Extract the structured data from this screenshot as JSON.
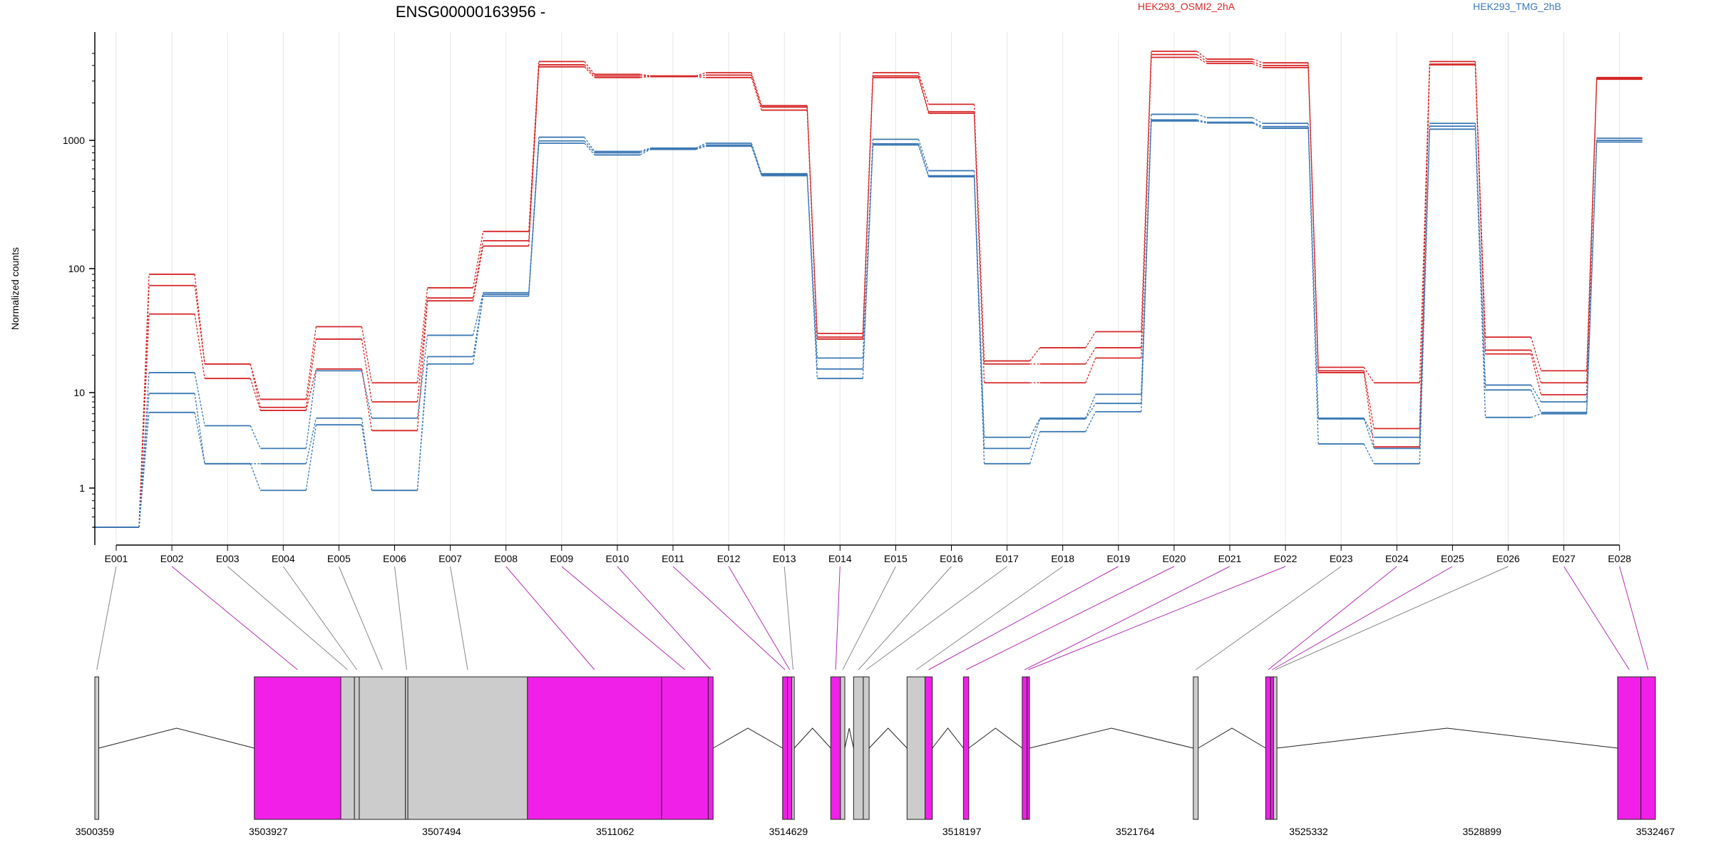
{
  "chart_data": {
    "type": "line",
    "title": "ENSG00000163956 -",
    "ylabel": "Normalized counts",
    "yscale": "log",
    "ylim": [
      0.4,
      5500
    ],
    "yticks": [
      "1",
      "10",
      "100",
      "1000"
    ],
    "grid": true,
    "legend_placement": "top",
    "colors": {
      "group_a": "#d62728",
      "group_b": "#3b78b4",
      "exon_tested": "#f020e8",
      "exon_other": "#cccccc",
      "grid": "#e6e6e6"
    },
    "categories": [
      "E001",
      "E002",
      "E003",
      "E004",
      "E005",
      "E006",
      "E007",
      "E008",
      "E009",
      "E010",
      "E011",
      "E012",
      "E013",
      "E014",
      "E015",
      "E016",
      "E017",
      "E018",
      "E019",
      "E020",
      "E021",
      "E022",
      "E023",
      "E024",
      "E025",
      "E026",
      "E027",
      "E028"
    ],
    "series": [
      {
        "name": "HEK293_OSMI2_2hA",
        "group": "a",
        "values": [
          0.5,
          90,
          17,
          8.5,
          34,
          12,
          70,
          195,
          4300,
          3400,
          3300,
          3500,
          1900,
          30,
          3500,
          1950,
          18,
          23,
          31,
          5200,
          4500,
          4200,
          16,
          12,
          4300,
          28,
          15,
          3200
        ]
      },
      {
        "name": "",
        "group": "a",
        "values": [
          0.5,
          73,
          17,
          7,
          27,
          8,
          58,
          165,
          4050,
          3300,
          3280,
          3350,
          1850,
          28,
          3300,
          1700,
          17,
          17,
          23,
          4900,
          4300,
          4000,
          15,
          4.2,
          4100,
          22,
          12,
          3150
        ]
      },
      {
        "name": "",
        "group": "a",
        "values": [
          0.5,
          43,
          13,
          6.5,
          15.5,
          4,
          55,
          150,
          3900,
          3200,
          3250,
          3200,
          1750,
          27,
          3200,
          1650,
          12,
          12,
          19,
          4650,
          4150,
          3850,
          14.5,
          2.7,
          4050,
          20.5,
          9.5,
          3100
        ]
      },
      {
        "name": "HEK293_TMG_2hB",
        "group": "b",
        "values": [
          0.5,
          14.5,
          4.5,
          2.6,
          15,
          5.4,
          29,
          64,
          1060,
          820,
          870,
          950,
          550,
          19,
          1020,
          580,
          3.4,
          5.4,
          9.6,
          1620,
          1520,
          1370,
          5.4,
          3.4,
          1370,
          11.5,
          8,
          1040
        ]
      },
      {
        "name": "",
        "group": "b",
        "values": [
          0.5,
          9.8,
          1.8,
          1.8,
          5.4,
          0.96,
          19.5,
          62,
          990,
          800,
          860,
          920,
          540,
          15.5,
          940,
          530,
          2.6,
          5.3,
          7.7,
          1460,
          1400,
          1290,
          5.3,
          2.6,
          1300,
          10.5,
          6.2,
          1000
        ]
      },
      {
        "name": "",
        "group": "b",
        "values": [
          0.5,
          6.2,
          1.8,
          0.96,
          4.6,
          0.96,
          17,
          60,
          950,
          770,
          850,
          900,
          530,
          13,
          920,
          520,
          1.8,
          3.9,
          6.3,
          1430,
          1380,
          1250,
          2.9,
          1.8,
          1230,
          5.5,
          6,
          970
        ]
      }
    ],
    "gene_model": {
      "coordinate_ticks": [
        "3500359",
        "3503927",
        "3507494",
        "3511062",
        "3514629",
        "3518197",
        "3521764",
        "3525332",
        "3528899",
        "3532467"
      ],
      "coordinate_values": [
        3500359,
        3503927,
        3507494,
        3511062,
        3514629,
        3518197,
        3521764,
        3525332,
        3528899,
        3532467
      ],
      "exons": [
        {
          "id": "E001",
          "start": 3500359,
          "end": 3500440,
          "tested": false
        },
        {
          "id": "E002",
          "start": 3503640,
          "end": 3505420,
          "tested": true
        },
        {
          "id": "E003",
          "start": 3505420,
          "end": 3505700,
          "tested": false
        },
        {
          "id": "E004",
          "start": 3505700,
          "end": 3505800,
          "tested": false
        },
        {
          "id": "E005",
          "start": 3505800,
          "end": 3506750,
          "tested": false
        },
        {
          "id": "E006",
          "start": 3506750,
          "end": 3506800,
          "tested": false
        },
        {
          "id": "E007",
          "start": 3506800,
          "end": 3509260,
          "tested": false
        },
        {
          "id": "E008",
          "start": 3509260,
          "end": 3512020,
          "tested": true
        },
        {
          "id": "E009",
          "start": 3512020,
          "end": 3512980,
          "tested": true
        },
        {
          "id": "E010",
          "start": 3512980,
          "end": 3513080,
          "tested": true
        },
        {
          "id": "E011",
          "start": 3514510,
          "end": 3514610,
          "tested": true
        },
        {
          "id": "E012",
          "start": 3514610,
          "end": 3514700,
          "tested": true
        },
        {
          "id": "E013",
          "start": 3514700,
          "end": 3514750,
          "tested": false
        },
        {
          "id": "E014",
          "start": 3515500,
          "end": 3515700,
          "tested": true
        },
        {
          "id": "E015",
          "start": 3515700,
          "end": 3515790,
          "tested": false
        },
        {
          "id": "E016",
          "start": 3515970,
          "end": 3516170,
          "tested": false
        },
        {
          "id": "E017",
          "start": 3516170,
          "end": 3516290,
          "tested": false
        },
        {
          "id": "E018",
          "start": 3517070,
          "end": 3517440,
          "tested": false
        },
        {
          "id": "E019",
          "start": 3517440,
          "end": 3517590,
          "tested": true
        },
        {
          "id": "E020",
          "start": 3518230,
          "end": 3518340,
          "tested": true
        },
        {
          "id": "E021",
          "start": 3519440,
          "end": 3519540,
          "tested": true
        },
        {
          "id": "E022",
          "start": 3519540,
          "end": 3519590,
          "tested": true
        },
        {
          "id": "E023",
          "start": 3522960,
          "end": 3523060,
          "tested": false
        },
        {
          "id": "E024",
          "start": 3524450,
          "end": 3524550,
          "tested": true
        },
        {
          "id": "E025",
          "start": 3524550,
          "end": 3524610,
          "tested": true
        },
        {
          "id": "E026",
          "start": 3524610,
          "end": 3524680,
          "tested": false
        },
        {
          "id": "E027",
          "start": 3531690,
          "end": 3532170,
          "tested": true
        },
        {
          "id": "E028",
          "start": 3532170,
          "end": 3532467,
          "tested": true
        }
      ]
    }
  }
}
